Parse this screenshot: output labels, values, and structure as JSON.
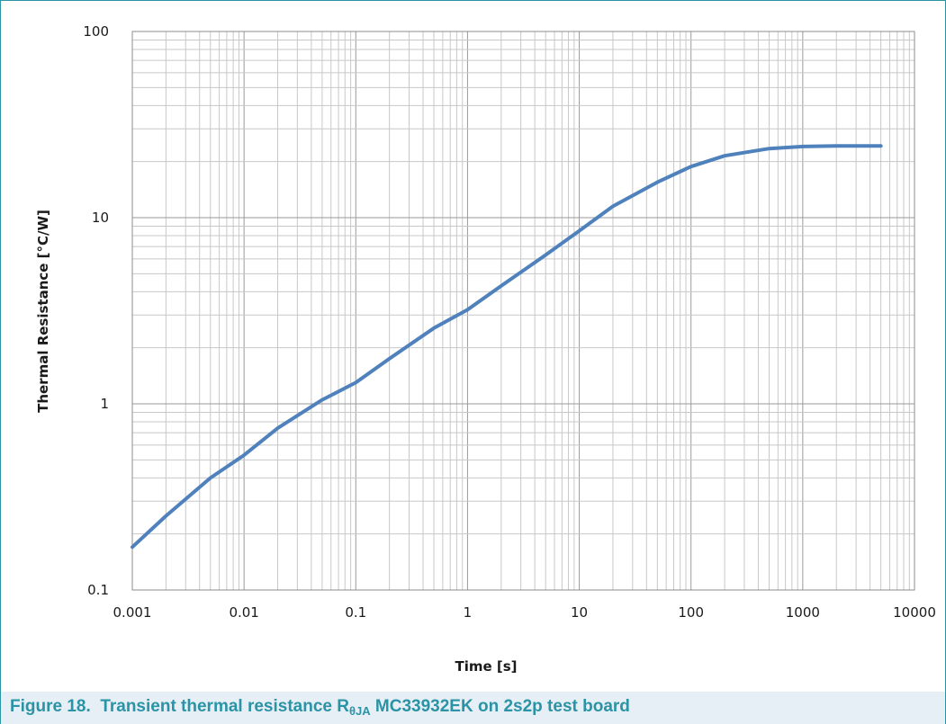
{
  "chart_data": {
    "type": "line",
    "xscale": "log",
    "yscale": "log",
    "xlim": [
      0.001,
      10000
    ],
    "ylim": [
      0.1,
      100
    ],
    "xticks": [
      "0.001",
      "0.01",
      "0.1",
      "1",
      "10",
      "100",
      "1000",
      "10000"
    ],
    "yticks": [
      "0.1",
      "1",
      "10",
      "100"
    ],
    "xlabel": "Time [s]",
    "ylabel": "Thermal Resistance [°C/W]",
    "grid": true,
    "line_color": "#4f81bd",
    "series": [
      {
        "x": [
          0.001,
          0.002,
          0.005,
          0.01,
          0.02,
          0.05,
          0.1,
          0.2,
          0.5,
          1,
          2,
          5,
          10,
          20,
          50,
          100,
          200,
          500,
          1000,
          2000,
          5000
        ],
        "y": [
          0.17,
          0.25,
          0.4,
          0.53,
          0.74,
          1.05,
          1.3,
          1.75,
          2.55,
          3.2,
          4.3,
          6.3,
          8.5,
          11.5,
          15.5,
          18.8,
          21.5,
          23.5,
          24.1,
          24.3,
          24.3
        ]
      }
    ]
  },
  "caption": {
    "figure_label": "Figure 18.",
    "text_before": "Transient thermal resistance R",
    "subscript": "θJA",
    "text_after": " MC33932EK on 2s2p test board"
  }
}
